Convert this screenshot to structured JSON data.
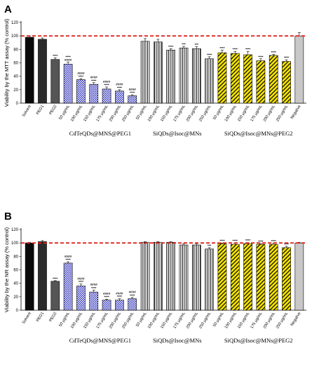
{
  "figure": {
    "panels": [
      "A",
      "B"
    ]
  },
  "chart_data": [
    {
      "panel": "A",
      "type": "bar",
      "ylabel": "Viability by the MTT assay (% control)",
      "ylim": [
        0,
        120
      ],
      "yticks": [
        0,
        20,
        40,
        60,
        80,
        100,
        120
      ],
      "reference_line": 100,
      "categories": [
        "Solvent",
        "PEG1",
        "PEG2",
        "50 μg/mL",
        "100 μg/mL",
        "150 μg/mL",
        "175 μg/mL",
        "200 μg/mL",
        "250 μg/mL",
        "50 μg/mL",
        "100 μg/mL",
        "150 μg/mL",
        "175 μg/mL",
        "200 μg/mL",
        "250 μg/mL",
        "50 μg/mL",
        "100 μg/mL",
        "150 μg/mL",
        "175 μg/mL",
        "200 μg/mL",
        "250 μg/mL",
        "Negative"
      ],
      "values": [
        98,
        95,
        65,
        58,
        35,
        28,
        21,
        18,
        11,
        92,
        91,
        79,
        82,
        81,
        66,
        75,
        74,
        72,
        63,
        71,
        62,
        100
      ],
      "errors": [
        1.5,
        2,
        2.5,
        3,
        1.5,
        2.5,
        3,
        2,
        1.5,
        4,
        4,
        2,
        2.5,
        3,
        3,
        4,
        3,
        5,
        3,
        1.5,
        2.5,
        5
      ],
      "significance": [
        "",
        "",
        "****",
        "****\n####",
        "####\n****",
        "####\n****",
        "####\n****",
        "####\n****",
        "####\n****",
        "",
        "",
        "****",
        "***",
        "***",
        "****",
        "****",
        "****",
        "****",
        "****",
        "****",
        "****",
        ""
      ],
      "styles": [
        "black",
        "dark",
        "gray",
        "blue",
        "blue",
        "blue",
        "blue",
        "blue",
        "blue",
        "white",
        "white",
        "white",
        "white",
        "white",
        "white",
        "yellow",
        "yellow",
        "yellow",
        "yellow",
        "yellow",
        "yellow",
        "lightgray"
      ],
      "group_labels": [
        "CdTeQDs@MNS@PEG1",
        "SiQDs@Isoc@MNs",
        "SiQDs@Isoc@MNs@PEG2"
      ]
    },
    {
      "panel": "B",
      "type": "bar",
      "ylabel": "Viability by the NR assay (% control)",
      "ylim": [
        0,
        120
      ],
      "yticks": [
        0,
        20,
        40,
        60,
        80,
        100,
        120
      ],
      "reference_line": 100,
      "categories": [
        "Solvent",
        "PEG1",
        "PEG2",
        "50 μg/mL",
        "100 μg/mL",
        "150 μg/mL",
        "175 μg/mL",
        "200 μg/mL",
        "250 μg/mL",
        "50 μg/mL",
        "100 μg/mL",
        "150 μg/mL",
        "175 μg/mL",
        "200 μg/mL",
        "250 μg/mL",
        "50 μg/mL",
        "100 μg/mL",
        "150 μg/mL",
        "175 μg/mL",
        "200 μg/mL",
        "250 μg/mL",
        "Negative"
      ],
      "values": [
        100,
        102,
        43,
        70,
        36,
        27,
        15,
        15,
        17,
        101,
        101,
        101,
        97,
        97,
        91,
        99,
        98,
        99,
        98,
        98,
        93,
        100
      ],
      "errors": [
        1,
        1.5,
        1,
        2,
        3,
        3,
        1.5,
        2,
        2,
        1,
        1,
        1,
        2,
        2,
        2,
        1,
        2,
        1.5,
        1,
        1.5,
        2,
        1
      ],
      "significance": [
        "",
        "",
        "****",
        "####\n****",
        "####\n****",
        "####\n****",
        "####\n****",
        "####\n****",
        "####\n****",
        "",
        "",
        "",
        "",
        "",
        "***",
        "****",
        "****",
        "****",
        "****",
        "****",
        "****",
        ""
      ],
      "styles": [
        "black",
        "dark",
        "gray",
        "blue",
        "blue",
        "blue",
        "blue",
        "blue",
        "blue",
        "white",
        "white",
        "white",
        "white",
        "white",
        "white",
        "yellow",
        "yellow",
        "yellow",
        "yellow",
        "yellow",
        "yellow",
        "lightgray"
      ],
      "group_labels": [
        "CdTeQDs@MNS@PEG1",
        "SiQDs@Isoc@MNs",
        "SiQDs@Isoc@MNs@PEG2"
      ]
    }
  ],
  "colors": {
    "black": "#0a0a0a",
    "dark": "#2b2b2b",
    "gray": "#555555",
    "blue": "#3b3dbf",
    "blue_bg": "#ffffff",
    "white": "#ffffff",
    "yellow": "#f5e400",
    "lightgray": "#c8c8c8",
    "reference": "#e0261e"
  }
}
